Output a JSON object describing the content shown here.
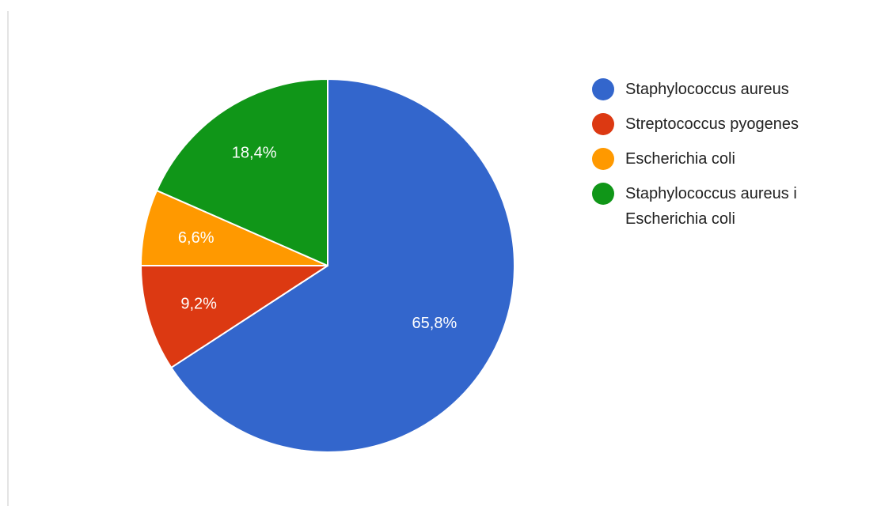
{
  "chart_data": {
    "type": "pie",
    "slices": [
      {
        "name": "Staphylococcus aureus",
        "value": 65.8,
        "label": "65,8%",
        "color": "#3366cc"
      },
      {
        "name": "Streptococcus pyogenes",
        "value": 9.2,
        "label": "9,2%",
        "color": "#dc3912"
      },
      {
        "name": "Escherichia coli",
        "value": 6.6,
        "label": "6,6%",
        "color": "#ff9900"
      },
      {
        "name": "Staphylococcus aureus i Escherichia coli",
        "value": 18.4,
        "label": "18,4%",
        "color": "#109618"
      }
    ],
    "legend_position": "right",
    "start_angle": "top, clockwise",
    "slice_border_color": "#ffffff"
  }
}
